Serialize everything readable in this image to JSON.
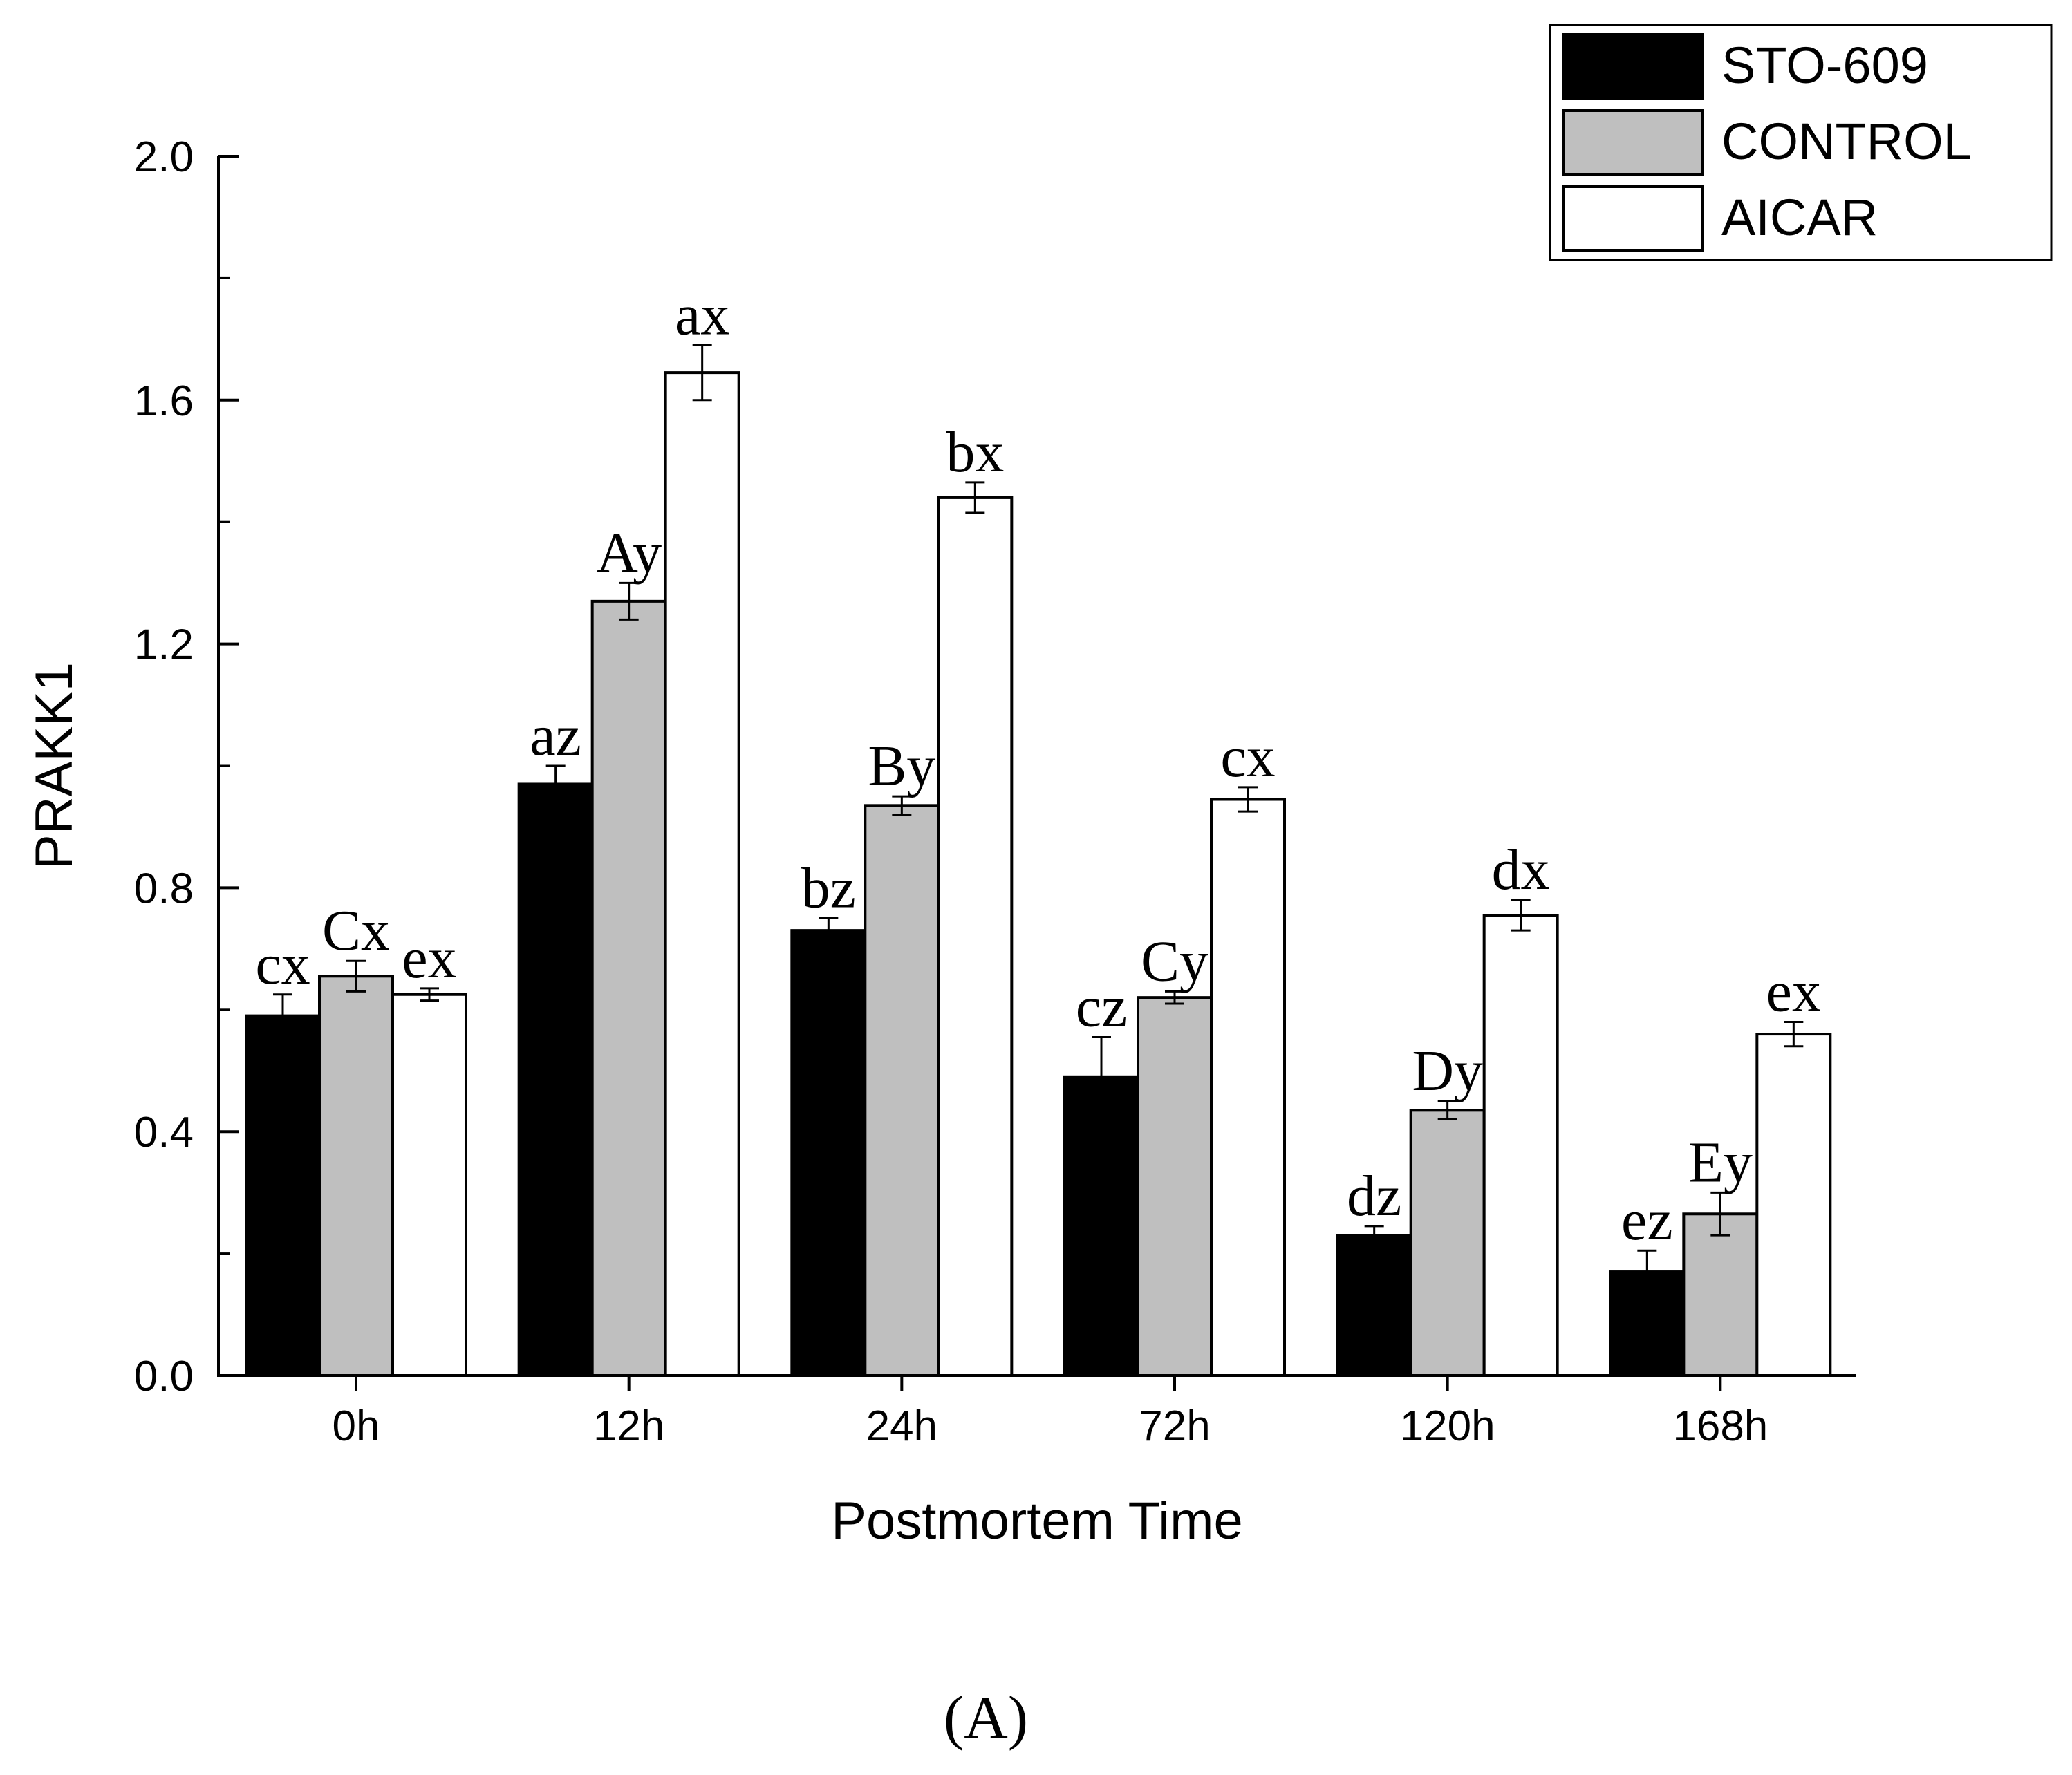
{
  "chart_data": {
    "type": "bar",
    "panel_label": "(A)",
    "xlabel": "Postmortem Time",
    "ylabel": "PRAKK1",
    "ylim": [
      0,
      2.0
    ],
    "yticks": [
      0.0,
      0.4,
      0.8,
      1.2,
      1.6,
      2.0
    ],
    "ytick_labels": [
      "0.0",
      "0.4",
      "0.8",
      "1.2",
      "1.6",
      "2.0"
    ],
    "categories": [
      "0h",
      "12h",
      "24h",
      "72h",
      "120h",
      "168h"
    ],
    "legend_position": "top-right",
    "series": [
      {
        "name": "STO-609",
        "color": "#000000",
        "values": [
          0.59,
          0.97,
          0.73,
          0.49,
          0.23,
          0.17
        ],
        "errors": [
          0.035,
          0.03,
          0.02,
          0.065,
          0.015,
          0.035
        ],
        "labels": [
          "cx",
          "az",
          "bz",
          "cz",
          "dz",
          "ez"
        ]
      },
      {
        "name": "CONTROL",
        "color": "#bfbfbf",
        "values": [
          0.655,
          1.27,
          0.935,
          0.62,
          0.435,
          0.265
        ],
        "errors": [
          0.025,
          0.03,
          0.015,
          0.01,
          0.015,
          0.035
        ],
        "labels": [
          "Cx",
          "Ay",
          "By",
          "Cy",
          "Dy",
          "Ey"
        ]
      },
      {
        "name": "AICAR",
        "color": "#ffffff",
        "values": [
          0.625,
          1.645,
          1.44,
          0.945,
          0.755,
          0.56
        ],
        "errors": [
          0.01,
          0.045,
          0.025,
          0.02,
          0.025,
          0.02
        ],
        "labels": [
          "ex",
          "ax",
          "bx",
          "cx",
          "dx",
          "ex"
        ]
      }
    ]
  }
}
